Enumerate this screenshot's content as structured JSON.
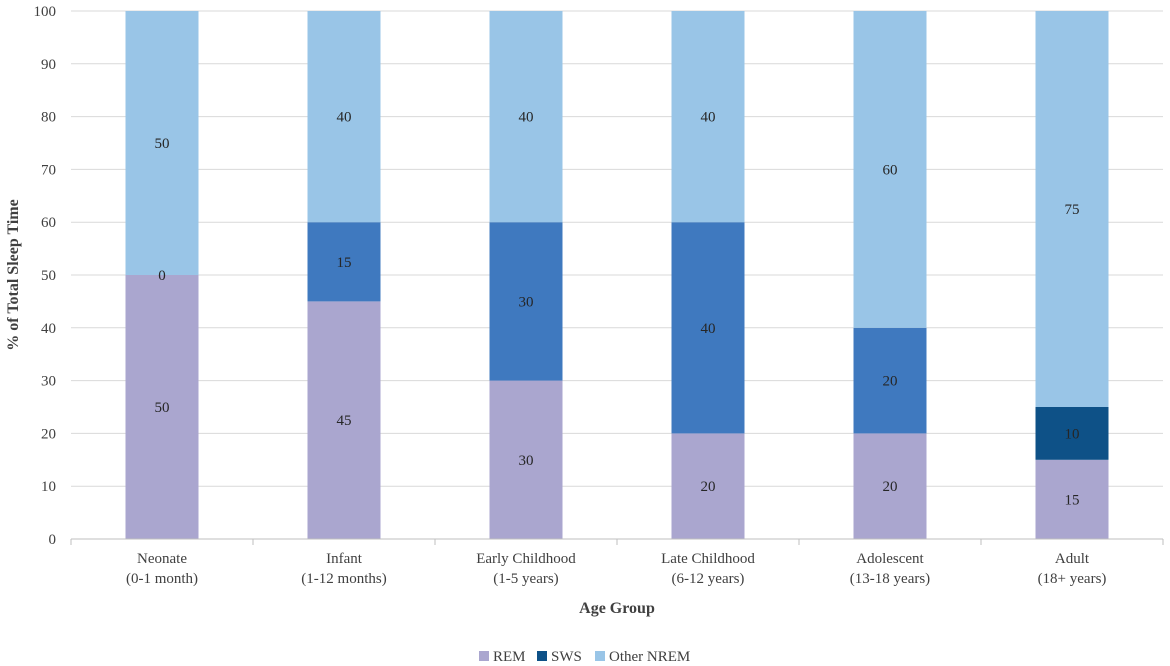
{
  "chart_data": {
    "type": "bar",
    "stacked": true,
    "title": "",
    "xlabel": "Age Group",
    "ylabel": "% of Total Sleep Time",
    "ylim": [
      0,
      100
    ],
    "yticks": [
      0,
      10,
      20,
      30,
      40,
      50,
      60,
      70,
      80,
      90,
      100
    ],
    "grid": true,
    "legend_position": "bottom",
    "categories": [
      [
        "Neonate",
        "(0-1 month)"
      ],
      [
        "Infant",
        "(1-12 months)"
      ],
      [
        "Early Childhood",
        "(1-5 years)"
      ],
      [
        "Late Childhood",
        "(6-12 years)"
      ],
      [
        "Adolescent",
        "(13-18 years)"
      ],
      [
        "Adult",
        "(18+ years)"
      ]
    ],
    "series": [
      {
        "name": "REM",
        "color": "#aaa6cf",
        "values": [
          50,
          45,
          30,
          20,
          20,
          15
        ]
      },
      {
        "name": "SWS",
        "color": "#3f79bf",
        "values": [
          0,
          15,
          30,
          40,
          20,
          10
        ],
        "colors": [
          "#3f79bf",
          "#3f79bf",
          "#3f79bf",
          "#3f79bf",
          "#3f79bf",
          "#0e5187"
        ]
      },
      {
        "name": "Other NREM",
        "color": "#99c5e7",
        "values": [
          50,
          40,
          40,
          40,
          60,
          75
        ]
      }
    ],
    "legend_colors": [
      "#aaa6cf",
      "#0e5187",
      "#99c5e7"
    ]
  }
}
